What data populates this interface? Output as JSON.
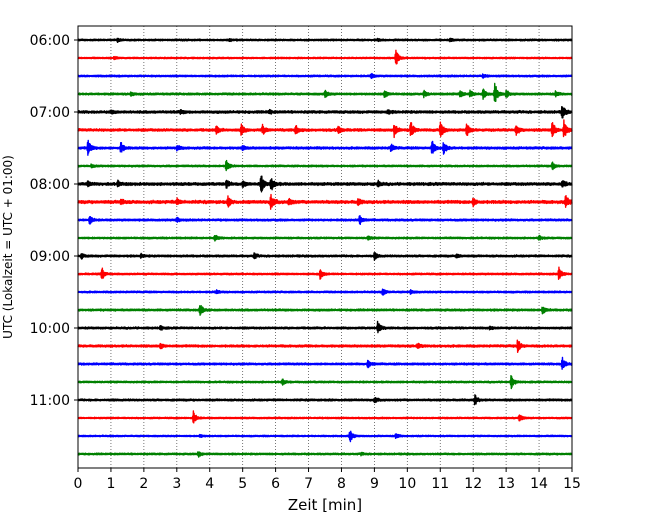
{
  "chart_data": {
    "type": "line",
    "title": "",
    "xlabel": "Zeit  [min]",
    "ylabel": "UTC (Lokalzeit = UTC + 01:00)",
    "xlim": [
      0,
      15
    ],
    "x_ticks": [
      "0",
      "1",
      "2",
      "3",
      "4",
      "5",
      "6",
      "7",
      "8",
      "9",
      "10",
      "11",
      "12",
      "13",
      "14",
      "15"
    ],
    "x_grid": "dotted",
    "y_ticks": [
      {
        "label": "06:00",
        "trace_index": 0
      },
      {
        "label": "07:00",
        "trace_index": 4
      },
      {
        "label": "08:00",
        "trace_index": 8
      },
      {
        "label": "09:00",
        "trace_index": 12
      },
      {
        "label": "10:00",
        "trace_index": 16
      },
      {
        "label": "11:00",
        "trace_index": 20
      }
    ],
    "trace_interval_minutes": 15,
    "color_cycle": [
      "#000000",
      "#ff0000",
      "#0000ff",
      "#008000"
    ],
    "traces": [
      {
        "start": "06:00",
        "noise": 0.7,
        "events": [
          {
            "t": 1.2,
            "a": 1.5
          },
          {
            "t": 4.6,
            "a": 1.3
          },
          {
            "t": 9.1,
            "a": 1.2
          },
          {
            "t": 11.3,
            "a": 1.4
          }
        ]
      },
      {
        "start": "06:15",
        "noise": 0.6,
        "events": [
          {
            "t": 1.1,
            "a": 1.5
          },
          {
            "t": 9.65,
            "a": 9.5
          }
        ]
      },
      {
        "start": "06:30",
        "noise": 0.7,
        "events": [
          {
            "t": 8.9,
            "a": 2.5
          },
          {
            "t": 12.3,
            "a": 1.8
          }
        ]
      },
      {
        "start": "06:45",
        "noise": 0.8,
        "events": [
          {
            "t": 1.6,
            "a": 2
          },
          {
            "t": 7.5,
            "a": 3.5
          },
          {
            "t": 9.3,
            "a": 4
          },
          {
            "t": 10.5,
            "a": 3
          },
          {
            "t": 11.6,
            "a": 3.8
          },
          {
            "t": 11.9,
            "a": 4
          },
          {
            "t": 12.3,
            "a": 5
          },
          {
            "t": 12.65,
            "a": 12
          },
          {
            "t": 13.0,
            "a": 4
          },
          {
            "t": 14.5,
            "a": 3
          }
        ]
      },
      {
        "start": "07:00",
        "noise": 1.0,
        "events": [
          {
            "t": 1.0,
            "a": 2
          },
          {
            "t": 3.1,
            "a": 2.2
          },
          {
            "t": 5.8,
            "a": 2
          },
          {
            "t": 9.4,
            "a": 2
          },
          {
            "t": 14.7,
            "a": 7
          }
        ]
      },
      {
        "start": "07:15",
        "noise": 1.0,
        "events": [
          {
            "t": 4.2,
            "a": 4
          },
          {
            "t": 4.95,
            "a": 6
          },
          {
            "t": 5.6,
            "a": 5
          },
          {
            "t": 6.6,
            "a": 5
          },
          {
            "t": 7.9,
            "a": 4
          },
          {
            "t": 9.6,
            "a": 7
          },
          {
            "t": 10.1,
            "a": 9
          },
          {
            "t": 11.0,
            "a": 11
          },
          {
            "t": 11.8,
            "a": 7
          },
          {
            "t": 13.3,
            "a": 6
          },
          {
            "t": 14.4,
            "a": 9
          },
          {
            "t": 14.75,
            "a": 10
          }
        ]
      },
      {
        "start": "07:30",
        "noise": 0.9,
        "events": [
          {
            "t": 0.3,
            "a": 8
          },
          {
            "t": 1.3,
            "a": 6
          },
          {
            "t": 3.0,
            "a": 3
          },
          {
            "t": 5.0,
            "a": 2.5
          },
          {
            "t": 9.5,
            "a": 4
          },
          {
            "t": 10.75,
            "a": 8
          },
          {
            "t": 11.1,
            "a": 7
          }
        ]
      },
      {
        "start": "07:45",
        "noise": 0.7,
        "events": [
          {
            "t": 0.4,
            "a": 1.5
          },
          {
            "t": 4.5,
            "a": 7
          },
          {
            "t": 14.4,
            "a": 4
          }
        ]
      },
      {
        "start": "08:00",
        "noise": 1.1,
        "events": [
          {
            "t": 0.3,
            "a": 2.5
          },
          {
            "t": 1.2,
            "a": 3
          },
          {
            "t": 4.5,
            "a": 4
          },
          {
            "t": 5.0,
            "a": 3
          },
          {
            "t": 5.55,
            "a": 10
          },
          {
            "t": 5.85,
            "a": 8
          },
          {
            "t": 9.1,
            "a": 3
          },
          {
            "t": 14.7,
            "a": 4
          }
        ]
      },
      {
        "start": "08:15",
        "noise": 1.2,
        "events": [
          {
            "t": 1.3,
            "a": 3
          },
          {
            "t": 3.0,
            "a": 3
          },
          {
            "t": 4.55,
            "a": 5
          },
          {
            "t": 5.85,
            "a": 9
          },
          {
            "t": 6.4,
            "a": 4
          },
          {
            "t": 8.5,
            "a": 3
          },
          {
            "t": 12.0,
            "a": 4
          },
          {
            "t": 14.8,
            "a": 7
          }
        ]
      },
      {
        "start": "08:30",
        "noise": 0.8,
        "events": [
          {
            "t": 0.35,
            "a": 5
          },
          {
            "t": 3.0,
            "a": 2
          },
          {
            "t": 8.55,
            "a": 5
          }
        ]
      },
      {
        "start": "08:45",
        "noise": 0.7,
        "events": [
          {
            "t": 4.15,
            "a": 4
          },
          {
            "t": 8.8,
            "a": 2
          },
          {
            "t": 14.0,
            "a": 2
          }
        ]
      },
      {
        "start": "09:00",
        "noise": 0.8,
        "events": [
          {
            "t": 0.1,
            "a": 2.5
          },
          {
            "t": 1.9,
            "a": 2
          },
          {
            "t": 5.35,
            "a": 3
          },
          {
            "t": 9.0,
            "a": 3.5
          },
          {
            "t": 11.5,
            "a": 2
          }
        ]
      },
      {
        "start": "09:15",
        "noise": 0.7,
        "events": [
          {
            "t": 0.72,
            "a": 7
          },
          {
            "t": 7.35,
            "a": 5
          },
          {
            "t": 14.6,
            "a": 7
          }
        ]
      },
      {
        "start": "09:30",
        "noise": 0.7,
        "events": [
          {
            "t": 4.2,
            "a": 2
          },
          {
            "t": 9.25,
            "a": 4
          },
          {
            "t": 10.1,
            "a": 2
          }
        ]
      },
      {
        "start": "09:45",
        "noise": 0.8,
        "events": [
          {
            "t": 3.7,
            "a": 7
          },
          {
            "t": 14.1,
            "a": 4
          }
        ]
      },
      {
        "start": "10:00",
        "noise": 0.8,
        "events": [
          {
            "t": 2.5,
            "a": 2
          },
          {
            "t": 9.1,
            "a": 7
          },
          {
            "t": 12.5,
            "a": 2
          }
        ]
      },
      {
        "start": "10:15",
        "noise": 0.9,
        "events": [
          {
            "t": 2.5,
            "a": 3
          },
          {
            "t": 10.3,
            "a": 2.5
          },
          {
            "t": 13.35,
            "a": 7
          }
        ]
      },
      {
        "start": "10:30",
        "noise": 0.8,
        "events": [
          {
            "t": 8.8,
            "a": 4
          },
          {
            "t": 14.7,
            "a": 7
          }
        ]
      },
      {
        "start": "10:45",
        "noise": 0.7,
        "events": [
          {
            "t": 6.2,
            "a": 3
          },
          {
            "t": 13.15,
            "a": 7
          }
        ]
      },
      {
        "start": "11:00",
        "noise": 0.8,
        "events": [
          {
            "t": 9.0,
            "a": 3
          },
          {
            "t": 12.05,
            "a": 5
          }
        ]
      },
      {
        "start": "11:15",
        "noise": 0.6,
        "events": [
          {
            "t": 3.5,
            "a": 7
          },
          {
            "t": 13.4,
            "a": 4
          }
        ]
      },
      {
        "start": "11:30",
        "noise": 0.6,
        "events": [
          {
            "t": 8.25,
            "a": 7
          },
          {
            "t": 9.65,
            "a": 3
          },
          {
            "t": 3.7,
            "a": 1.5
          }
        ]
      },
      {
        "start": "11:45",
        "noise": 0.7,
        "events": [
          {
            "t": 3.65,
            "a": 3
          },
          {
            "t": 8.6,
            "a": 1.5
          }
        ]
      }
    ]
  }
}
